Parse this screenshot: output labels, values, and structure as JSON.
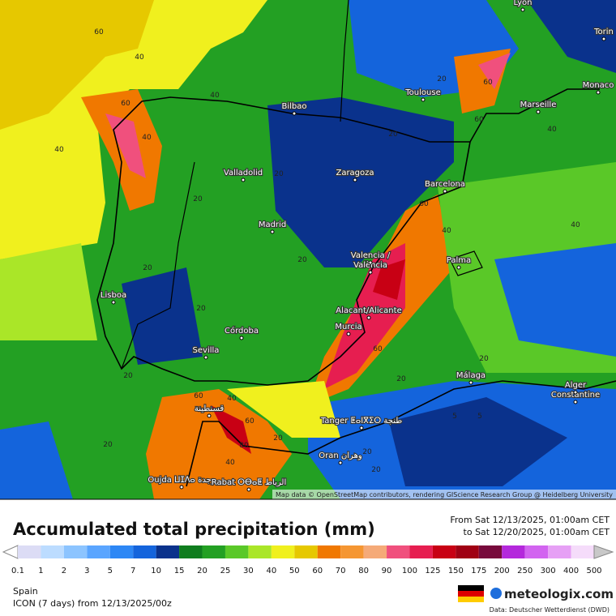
{
  "map": {
    "cities": [
      "Lyon",
      "Torin",
      "Toulouse",
      "Monaco",
      "Marseille",
      "Bilbao",
      "Zaragoza",
      "Valladolid",
      "Barcelona",
      "Madrid",
      "Valencia /",
      "València",
      "Palma",
      "Lisboa",
      "Alacant/Alicante",
      "Murcia",
      "Córdoba",
      "Sevilla",
      "Málaga",
      "Alger",
      "Constantine",
      "قسنطينة",
      "Tanger ⵟⴰⵏⴳⵉⵔ طنجة",
      "Oran وهران",
      "Oujda ⵡⵊⴷⴰ وجدة",
      "Rabat ⵔⴱⴰⵟ الرباط",
      "Fès ⴼⴰⵙ فاس"
    ],
    "contour_labels": [
      60,
      40,
      40,
      60,
      40,
      40,
      20,
      20,
      20,
      20,
      20,
      60,
      60,
      40,
      40,
      40,
      60,
      20,
      20,
      60,
      20,
      20,
      20,
      20,
      60,
      40,
      60,
      80,
      40,
      20,
      5,
      5,
      20,
      20
    ],
    "attribution": "Map data © OpenStreetMap contributors, rendering GIScience Research Group @ Heidelberg University"
  },
  "legend": {
    "title": "Accumulated total precipitation (mm)",
    "period_from": "From Sat 12/13/2025, 01:00am CET",
    "period_to": "to Sat 12/20/2025, 01:00am CET",
    "ticks": [
      0.1,
      1,
      2,
      3,
      5,
      7,
      10,
      15,
      20,
      25,
      30,
      40,
      50,
      60,
      70,
      80,
      90,
      100,
      125,
      150,
      175,
      200,
      250,
      300,
      400,
      500
    ],
    "colors": [
      "#dcdcf5",
      "#bcdcff",
      "#8cc4ff",
      "#5aa5ff",
      "#2d87f5",
      "#1464dc",
      "#0a328c",
      "#0f7d1e",
      "#23a023",
      "#5ac828",
      "#aae628",
      "#f0f01e",
      "#e6c800",
      "#f07800",
      "#f59632",
      "#f5aa78",
      "#f0507d",
      "#e61e50",
      "#c80014",
      "#a00014",
      "#780a3c",
      "#b428dc",
      "#d264f0",
      "#e6a0f5",
      "#f5dcfa"
    ]
  },
  "footer": {
    "region": "Spain",
    "model": "ICON (7 days)  from  12/13/2025/00z",
    "brand": "meteologix.com",
    "source": "Data: Deutscher Wetterdienst (DWD)"
  }
}
